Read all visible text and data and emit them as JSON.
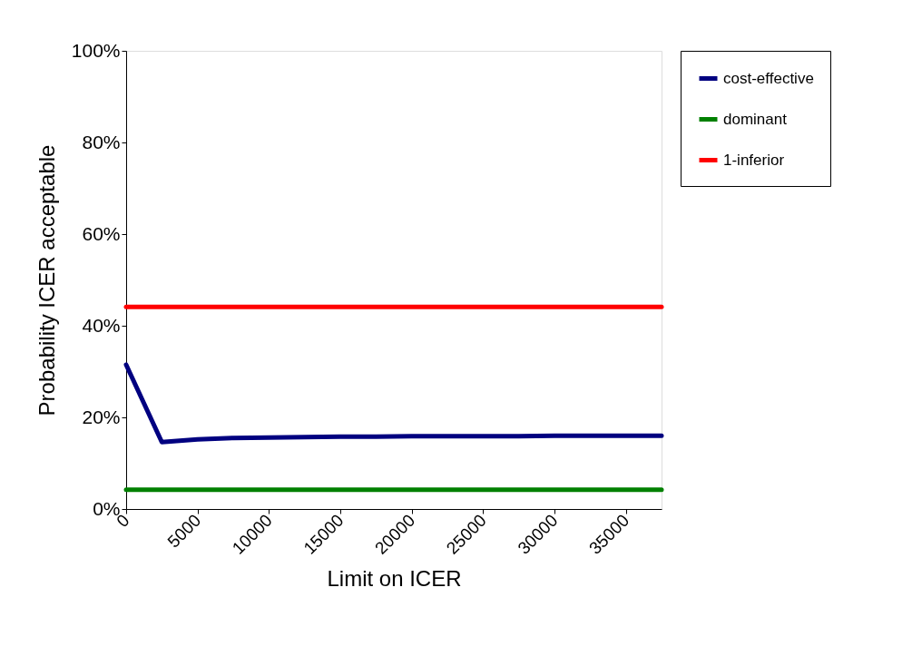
{
  "chart_data": {
    "type": "line",
    "xlabel": "Limit on ICER",
    "ylabel": "Probability ICER acceptable",
    "x": [
      0,
      2500,
      5000,
      7500,
      10000,
      12500,
      15000,
      17500,
      20000,
      22500,
      25000,
      27500,
      30000,
      32500,
      35000,
      37500
    ],
    "series": [
      {
        "name": "cost-effective",
        "color": "#000080",
        "values": [
          31.5,
          14.6,
          15.2,
          15.5,
          15.6,
          15.7,
          15.8,
          15.8,
          15.9,
          15.9,
          15.9,
          15.9,
          16.0,
          16.0,
          16.0,
          16.0
        ]
      },
      {
        "name": "dominant",
        "color": "#008000",
        "values": [
          4.2,
          4.2,
          4.2,
          4.2,
          4.2,
          4.2,
          4.2,
          4.2,
          4.2,
          4.2,
          4.2,
          4.2,
          4.2,
          4.2,
          4.2,
          4.2
        ]
      },
      {
        "name": "1-inferior",
        "color": "#ff0000",
        "values": [
          44.1,
          44.1,
          44.1,
          44.1,
          44.1,
          44.1,
          44.1,
          44.1,
          44.1,
          44.1,
          44.1,
          44.1,
          44.1,
          44.1,
          44.1,
          44.1
        ]
      }
    ],
    "xlim": [
      0,
      37500
    ],
    "xticks": [
      0,
      5000,
      10000,
      15000,
      20000,
      25000,
      30000,
      35000
    ],
    "ylim": [
      0,
      100
    ],
    "yticks": [
      {
        "value": 0,
        "label": "0%"
      },
      {
        "value": 20,
        "label": "20%"
      },
      {
        "value": 40,
        "label": "40%"
      },
      {
        "value": 60,
        "label": "60%"
      },
      {
        "value": 80,
        "label": "80%"
      },
      {
        "value": 100,
        "label": "100%"
      }
    ],
    "grid": false,
    "legend": "right",
    "marker": "none",
    "line_style": "solid"
  }
}
